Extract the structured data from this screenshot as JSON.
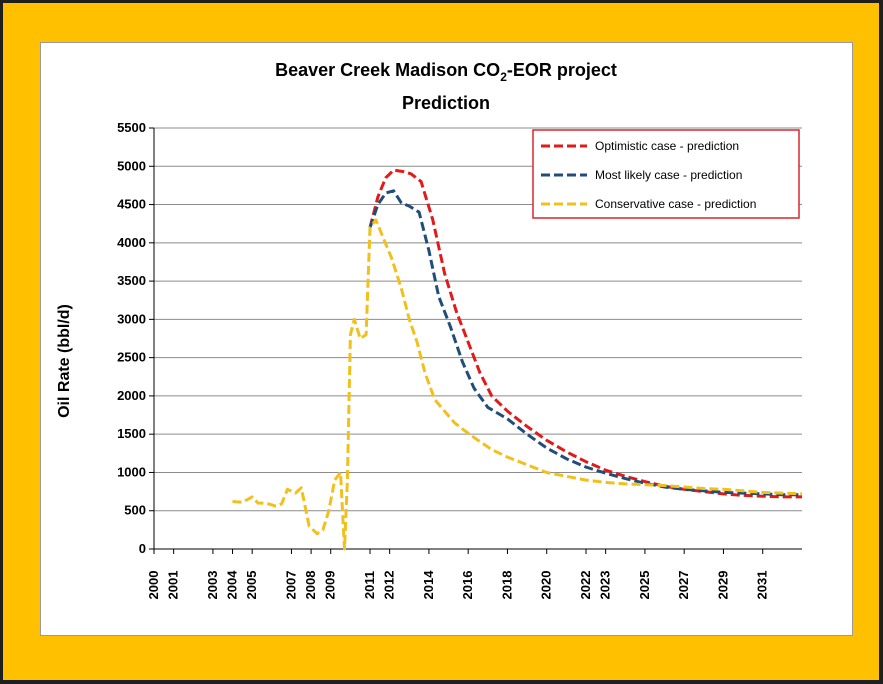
{
  "frame_color": "#FFC000",
  "chart_data": {
    "type": "line",
    "title": "Beaver Creek Madison CO",
    "title_sub": "2",
    "title_suffix": "-EOR project",
    "title_line2": "Prediction",
    "xlabel": "",
    "ylabel": "Oil Rate (bbl/d)",
    "xlim": [
      2000,
      2033
    ],
    "ylim": [
      0,
      5500
    ],
    "x_ticks": [
      2000,
      2001,
      2003,
      2004,
      2005,
      2007,
      2008,
      2009,
      2011,
      2012,
      2014,
      2016,
      2018,
      2020,
      2022,
      2023,
      2025,
      2027,
      2029,
      2031
    ],
    "x_tick_labels": [
      "2000",
      "2001",
      "2003",
      "2004",
      "2005",
      "2007",
      "2008",
      "2009",
      "2011",
      "2012",
      "2014",
      "2016",
      "2018",
      "2020",
      "2022",
      "2023",
      "2025",
      "2027",
      "2029",
      "2031"
    ],
    "y_ticks": [
      0,
      500,
      1000,
      1500,
      2000,
      2500,
      3000,
      3500,
      4000,
      4500,
      5000,
      5500
    ],
    "y_tick_labels": [
      "0",
      "500",
      "1000",
      "1500",
      "2000",
      "2500",
      "3000",
      "3500",
      "4000",
      "4500",
      "5000",
      "5500"
    ],
    "grid": true,
    "legend_position": "top-right",
    "series": [
      {
        "name": "Optimistic case - prediction",
        "color": "#E21A1A",
        "x": [
          2011.0,
          2011.4,
          2011.8,
          2012.2,
          2012.7,
          2013.1,
          2013.6,
          2014.2,
          2014.8,
          2015.4,
          2016.0,
          2016.6,
          2017.2,
          2018.0,
          2019.0,
          2020.0,
          2021.0,
          2022.0,
          2023.0,
          2024.0,
          2025.0,
          2026.0,
          2027.0,
          2028.0,
          2029.0,
          2030.0,
          2031.0,
          2032.0,
          2033.0
        ],
        "y": [
          4200,
          4600,
          4850,
          4950,
          4930,
          4900,
          4800,
          4300,
          3600,
          3100,
          2700,
          2300,
          2000,
          1800,
          1600,
          1420,
          1270,
          1140,
          1030,
          950,
          880,
          820,
          780,
          750,
          720,
          700,
          690,
          680,
          680
        ]
      },
      {
        "name": "Most likely case - prediction",
        "color": "#1F4E79",
        "x": [
          2011.0,
          2011.4,
          2011.8,
          2012.2,
          2012.6,
          2013.0,
          2013.5,
          2014.0,
          2014.5,
          2015.1,
          2015.7,
          2016.3,
          2017.0,
          2018.0,
          2019.0,
          2020.0,
          2021.0,
          2022.0,
          2023.0,
          2024.0,
          2025.0,
          2026.0,
          2027.0,
          2028.0,
          2029.0,
          2030.0,
          2031.0,
          2032.0,
          2033.0
        ],
        "y": [
          4200,
          4500,
          4650,
          4680,
          4520,
          4480,
          4400,
          3900,
          3300,
          2900,
          2450,
          2100,
          1850,
          1700,
          1500,
          1320,
          1180,
          1070,
          990,
          920,
          860,
          810,
          780,
          760,
          740,
          730,
          720,
          710,
          710
        ]
      },
      {
        "name": "Conservative case - prediction",
        "color": "#F2C01B",
        "x": [
          2004.0,
          2004.5,
          2005.0,
          2005.3,
          2005.7,
          2006.2,
          2006.5,
          2006.8,
          2007.2,
          2007.5,
          2007.9,
          2008.3,
          2008.6,
          2008.9,
          2009.2,
          2009.5,
          2009.7,
          2009.85,
          2010.0,
          2010.2,
          2010.5,
          2010.8,
          2011.0,
          2011.3,
          2011.7,
          2012.1,
          2012.6,
          2013.0,
          2013.4,
          2013.8,
          2014.3,
          2014.8,
          2015.3,
          2015.8,
          2016.5,
          2017.2,
          2018.0,
          2019.0,
          2020.0,
          2021.0,
          2022.0,
          2023.0,
          2024.0,
          2025.0,
          2026.0,
          2027.0,
          2028.0,
          2029.0,
          2030.0,
          2031.0,
          2032.0,
          2033.0
        ],
        "y": [
          620,
          610,
          680,
          600,
          600,
          560,
          590,
          780,
          730,
          800,
          300,
          200,
          250,
          500,
          900,
          1000,
          0,
          900,
          2800,
          3000,
          2750,
          2800,
          4200,
          4300,
          4050,
          3800,
          3400,
          3000,
          2700,
          2300,
          1950,
          1800,
          1650,
          1550,
          1420,
          1300,
          1200,
          1100,
          1000,
          950,
          900,
          870,
          850,
          840,
          830,
          810,
          790,
          780,
          760,
          740,
          730,
          720
        ]
      }
    ]
  }
}
